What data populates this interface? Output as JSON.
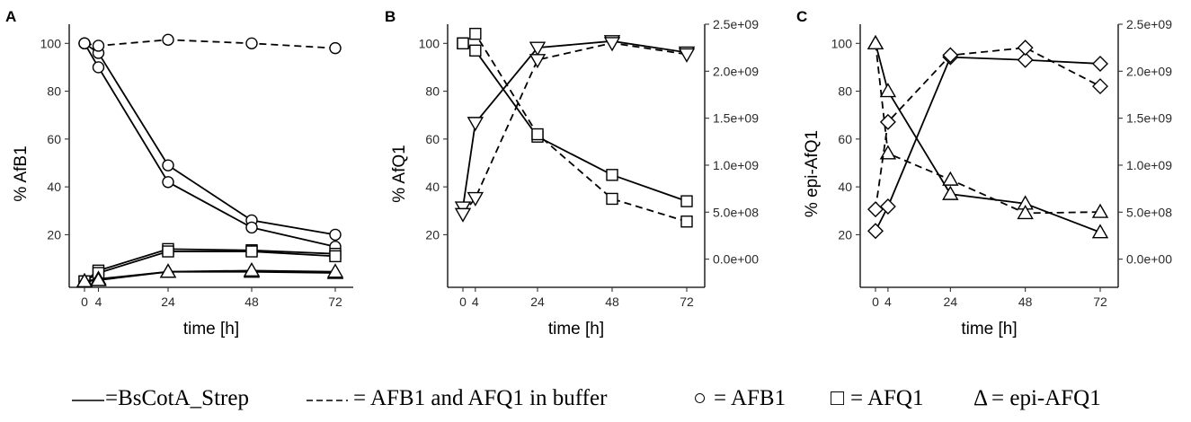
{
  "panels": [
    {
      "letter": "A",
      "xlabel": "time [h]",
      "ylabel": "% AfB1",
      "xticks": [
        0,
        4,
        24,
        48,
        72
      ],
      "yticks": [
        20,
        40,
        60,
        80,
        100
      ],
      "ylim": [
        -2,
        108
      ],
      "y2ticks": [],
      "y2tick_labels": [],
      "y2lim": null
    },
    {
      "letter": "B",
      "xlabel": "time [h]",
      "ylabel": "% AfQ1",
      "xticks": [
        0,
        4,
        24,
        48,
        72
      ],
      "yticks": [
        20,
        40,
        60,
        80,
        100
      ],
      "ylim": [
        -2,
        108
      ],
      "y2ticks": [
        0,
        500000000,
        1000000000,
        1500000000,
        2000000000,
        2500000000
      ],
      "y2tick_labels": [
        "0.0e+00",
        "5.0e+08",
        "1.0e+09",
        "1.5e+09",
        "2.0e+09",
        "2.5e+09"
      ],
      "y2lim": [
        -300000000,
        2500000000
      ]
    },
    {
      "letter": "C",
      "xlabel": "time [h]",
      "ylabel": "% epi-AfQ1",
      "xticks": [
        0,
        4,
        24,
        48,
        72
      ],
      "yticks": [
        20,
        40,
        60,
        80,
        100
      ],
      "ylim": [
        -2,
        108
      ],
      "y2ticks": [
        0,
        500000000,
        1000000000,
        1500000000,
        2000000000,
        2500000000
      ],
      "y2tick_labels": [
        "0.0e+00",
        "5.0e+08",
        "1.0e+09",
        "1.5e+09",
        "2.0e+09",
        "2.5e+09"
      ],
      "y2lim": [
        -300000000,
        2500000000
      ]
    }
  ],
  "chart_data": [
    {
      "type": "line",
      "panel": "A",
      "x_label": "time [h]",
      "y_label": "% AfB1",
      "series": [
        {
          "compound": "AFB1",
          "marker": "circle",
          "line": "solid",
          "x": [
            0,
            4,
            24,
            48,
            72
          ],
          "y": [
            100,
            96,
            49,
            26,
            20
          ]
        },
        {
          "compound": "AFB1",
          "marker": "circle",
          "line": "solid",
          "x": [
            0,
            4,
            24,
            48,
            72
          ],
          "y": [
            100,
            90,
            42,
            23,
            15
          ]
        },
        {
          "compound": "AFB1",
          "marker": "circle",
          "line": "dashed",
          "x": [
            0,
            4,
            24,
            48,
            72
          ],
          "y": [
            100,
            99,
            101.5,
            100,
            98
          ]
        },
        {
          "compound": "AFQ1",
          "marker": "square",
          "line": "solid",
          "x": [
            0,
            4,
            24,
            48,
            72
          ],
          "y": [
            0.5,
            5,
            14,
            13.5,
            12
          ]
        },
        {
          "compound": "AFQ1",
          "marker": "square",
          "line": "solid",
          "x": [
            0,
            4,
            24,
            48,
            72
          ],
          "y": [
            0.5,
            4,
            13,
            13,
            11
          ]
        },
        {
          "compound": "epi-AFQ1",
          "marker": "triangle-up",
          "line": "solid",
          "x": [
            0,
            4,
            24,
            48,
            72
          ],
          "y": [
            0.5,
            1.5,
            4.5,
            4.5,
            4
          ]
        },
        {
          "compound": "epi-AFQ1",
          "marker": "triangle-up",
          "line": "solid",
          "x": [
            0,
            4,
            24,
            48,
            72
          ],
          "y": [
            0.5,
            1,
            4.5,
            5,
            4.5
          ]
        }
      ]
    },
    {
      "type": "line",
      "panel": "B",
      "x_label": "time [h]",
      "y_label": "% AfQ1",
      "series": [
        {
          "compound": "AFQ1",
          "marker": "square",
          "line": "solid",
          "x": [
            0,
            4,
            24,
            48,
            72
          ],
          "y": [
            100,
            97,
            61,
            45,
            34
          ]
        },
        {
          "compound": "AFQ1",
          "marker": "square",
          "line": "dashed",
          "x": [
            0,
            4,
            24,
            48,
            72
          ],
          "y": [
            100,
            104,
            62,
            35,
            25.5
          ]
        },
        {
          "marker": "triangle-down",
          "line": "solid",
          "axis": "right",
          "x": [
            0,
            4,
            24,
            48,
            72
          ],
          "y": [
            550000000,
            1450000000,
            2250000000,
            2320000000,
            2200000000
          ]
        },
        {
          "marker": "triangle-down",
          "line": "dashed",
          "axis": "right",
          "x": [
            0,
            4,
            24,
            48,
            72
          ],
          "y": [
            480000000,
            650000000,
            2120000000,
            2300000000,
            2180000000
          ]
        }
      ]
    },
    {
      "type": "line",
      "panel": "C",
      "x_label": "time [h]",
      "y_label": "% epi-AfQ1",
      "series": [
        {
          "compound": "epi-AFQ1",
          "marker": "triangle-up",
          "line": "solid",
          "x": [
            0,
            4,
            24,
            48,
            72
          ],
          "y": [
            100,
            80,
            37,
            33,
            21
          ]
        },
        {
          "compound": "epi-AFQ1",
          "marker": "triangle-up",
          "line": "dashed",
          "x": [
            0,
            4,
            24,
            48,
            72
          ],
          "y": [
            100,
            54,
            43,
            29,
            29.5
          ]
        },
        {
          "marker": "diamond",
          "line": "solid",
          "axis": "right",
          "x": [
            0,
            4,
            24,
            48,
            72
          ],
          "y": [
            300000000,
            560000000,
            2150000000,
            2120000000,
            2080000000
          ]
        },
        {
          "marker": "diamond",
          "line": "dashed",
          "axis": "right",
          "x": [
            0,
            4,
            24,
            48,
            72
          ],
          "y": [
            530000000,
            1460000000,
            2170000000,
            2250000000,
            1840000000
          ]
        }
      ]
    }
  ],
  "legend": {
    "solid_text": "=BsCotA_Strep",
    "dashed_text": "= AFB1 and AFQ1 in buffer",
    "circle_symbol": "○",
    "circle_text": " = AFB1",
    "square_symbol": "□",
    "square_text": " = AFQ1",
    "triangle_symbol": "Δ",
    "triangle_text": " = epi-AFQ1"
  }
}
